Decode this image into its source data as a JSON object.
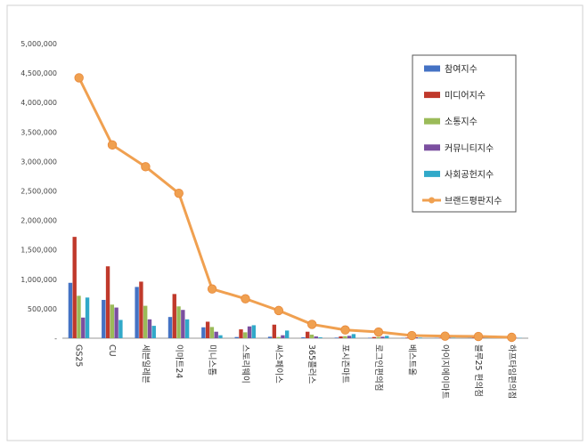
{
  "chart_data": {
    "type": "bar",
    "categories": [
      "GS25",
      "CU",
      "세븐일레븐",
      "이마트24",
      "미니스톱",
      "스토리웨이",
      "씨스페이스",
      "365플러스",
      "포시즌마트",
      "로그인편의점",
      "베스트올",
      "아이지에이마트",
      "블루25 편의점",
      "하프타임편의점"
    ],
    "ylim": [
      0,
      5000000
    ],
    "y_ticks": [
      "-",
      "500,000",
      "1,000,000",
      "1,500,000",
      "2,000,000",
      "2,500,000",
      "3,000,000",
      "3,500,000",
      "4,000,000",
      "4,500,000",
      "5,000,000"
    ],
    "series": [
      {
        "name": "참여지수",
        "type": "bar",
        "color": "#4472C4",
        "values": [
          940000,
          650000,
          870000,
          360000,
          185000,
          20000,
          25000,
          15000,
          10000,
          8000,
          5000,
          4000,
          3000,
          2000
        ]
      },
      {
        "name": "미디어지수",
        "type": "bar",
        "color": "#C0392B",
        "values": [
          1720000,
          1220000,
          960000,
          750000,
          280000,
          150000,
          230000,
          110000,
          30000,
          20000,
          10000,
          8000,
          8000,
          5000
        ]
      },
      {
        "name": "소통지수",
        "type": "bar",
        "color": "#9BBB59",
        "values": [
          720000,
          570000,
          550000,
          540000,
          190000,
          100000,
          20000,
          60000,
          35000,
          20000,
          10000,
          8000,
          6000,
          5000
        ]
      },
      {
        "name": "커뮤니티지수",
        "type": "bar",
        "color": "#7B4FA0",
        "values": [
          350000,
          520000,
          320000,
          480000,
          110000,
          200000,
          50000,
          30000,
          40000,
          25000,
          15000,
          10000,
          8000,
          6000
        ]
      },
      {
        "name": "사회공헌지수",
        "type": "bar",
        "color": "#31A9C9",
        "values": [
          690000,
          310000,
          210000,
          320000,
          50000,
          220000,
          130000,
          15000,
          70000,
          40000,
          10000,
          8000,
          7000,
          5000
        ]
      },
      {
        "name": "브랜드평판지수",
        "type": "line",
        "color": "#F0A050",
        "values": [
          4420000,
          3280000,
          2910000,
          2460000,
          835000,
          670000,
          470000,
          235000,
          140000,
          105000,
          45000,
          35000,
          30000,
          15000
        ]
      }
    ],
    "legend_position": "top-right",
    "grid": false
  }
}
